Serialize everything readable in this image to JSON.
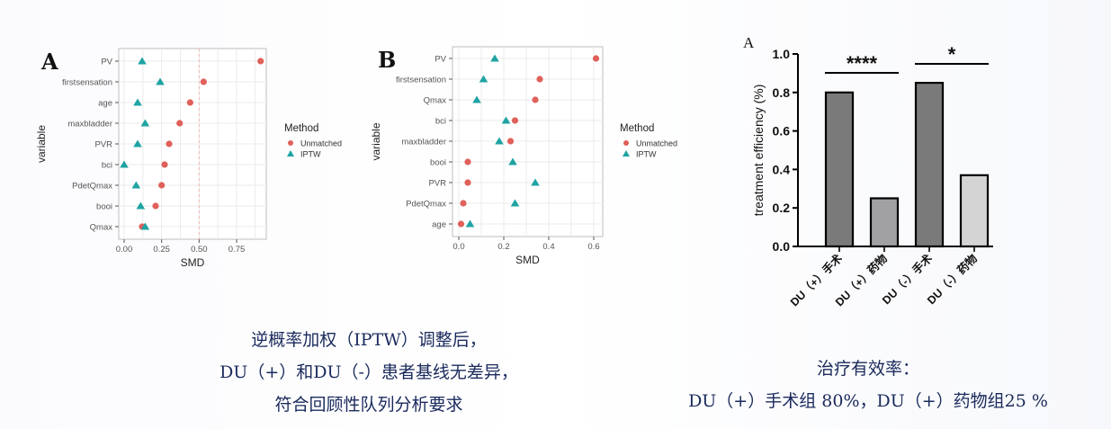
{
  "panels": {
    "left_label": "A",
    "middle_label": "B",
    "right_label": "A"
  },
  "colors": {
    "unmatched": "#e0605a",
    "iptw": "#1fa3a3",
    "bar_dark": "#7a7a7a",
    "bar_mid": "#a1a1a3",
    "bar_light": "#d4d4d4",
    "caption_text": "#1a2a5c"
  },
  "legend": {
    "title": "Method",
    "items": [
      {
        "label": "Unmatched",
        "shape": "circle-icon"
      },
      {
        "label": "IPTW",
        "shape": "triangle-icon"
      }
    ]
  },
  "chart_data": [
    {
      "type": "scatter",
      "panel": "A",
      "title": "",
      "xlabel": "SMD",
      "ylabel": "variable",
      "xlim": [
        0,
        0.95
      ],
      "xticks": [
        "0.00",
        "0.25",
        "0.50",
        "0.75"
      ],
      "xtick_values": [
        0,
        0.25,
        0.5,
        0.75
      ],
      "reference_line": 0.5,
      "grid": true,
      "legend_position": "right",
      "categories": [
        "PV",
        "firstsensation",
        "age",
        "maxbladder",
        "PVR",
        "bci",
        "PdetQmax",
        "booi",
        "Qmax"
      ],
      "series": [
        {
          "name": "Unmatched",
          "marker": "circle",
          "values": [
            0.91,
            0.53,
            0.44,
            0.37,
            0.3,
            0.27,
            0.25,
            0.21,
            0.12
          ]
        },
        {
          "name": "IPTW",
          "marker": "triangle",
          "values": [
            0.12,
            0.24,
            0.09,
            0.14,
            0.09,
            0.0,
            0.08,
            0.11,
            0.14
          ]
        }
      ]
    },
    {
      "type": "scatter",
      "panel": "B",
      "title": "",
      "xlabel": "SMD",
      "ylabel": "variable",
      "xlim": [
        0,
        0.64
      ],
      "xticks": [
        "0.0",
        "0.2",
        "0.4",
        "0.6"
      ],
      "xtick_values": [
        0,
        0.2,
        0.4,
        0.6
      ],
      "grid": true,
      "legend_position": "right",
      "categories": [
        "PV",
        "firstsensation",
        "Qmax",
        "bci",
        "maxbladder",
        "booi",
        "PVR",
        "PdetQmax",
        "age"
      ],
      "series": [
        {
          "name": "Unmatched",
          "marker": "circle",
          "values": [
            0.61,
            0.36,
            0.34,
            0.25,
            0.23,
            0.04,
            0.04,
            0.02,
            0.01
          ]
        },
        {
          "name": "IPTW",
          "marker": "triangle",
          "values": [
            0.16,
            0.11,
            0.08,
            0.21,
            0.18,
            0.24,
            0.34,
            0.25,
            0.05
          ]
        }
      ]
    },
    {
      "type": "bar",
      "panel": "A",
      "title": "",
      "xlabel": "",
      "ylabel": "treatment efficiency  (%)",
      "ylim": [
        0,
        1.0
      ],
      "yticks": [
        "0.0",
        "0.2",
        "0.4",
        "0.6",
        "0.8",
        "1.0"
      ],
      "ytick_values": [
        0,
        0.2,
        0.4,
        0.6,
        0.8,
        1.0
      ],
      "grid": false,
      "categories": [
        "DU（+）手术",
        "DU（+）药物",
        "DU（-）手术",
        "DU（-）药物"
      ],
      "values": [
        0.8,
        0.25,
        0.85,
        0.37
      ],
      "bar_colors": [
        "#7a7a7a",
        "#a1a1a3",
        "#7a7a7a",
        "#d4d4d4"
      ],
      "annotations": [
        {
          "label": "****",
          "between": [
            0,
            1
          ]
        },
        {
          "label": "*",
          "between": [
            2,
            3
          ]
        }
      ]
    }
  ],
  "captions": {
    "left": [
      "逆概率加权（IPTW）调整后，",
      "DU（+）和DU（-）患者基线无差异，",
      "符合回顾性队列分析要求"
    ],
    "right": [
      "治疗有效率：",
      "DU（+）手术组 80%，DU（+）药物组25 %"
    ]
  }
}
